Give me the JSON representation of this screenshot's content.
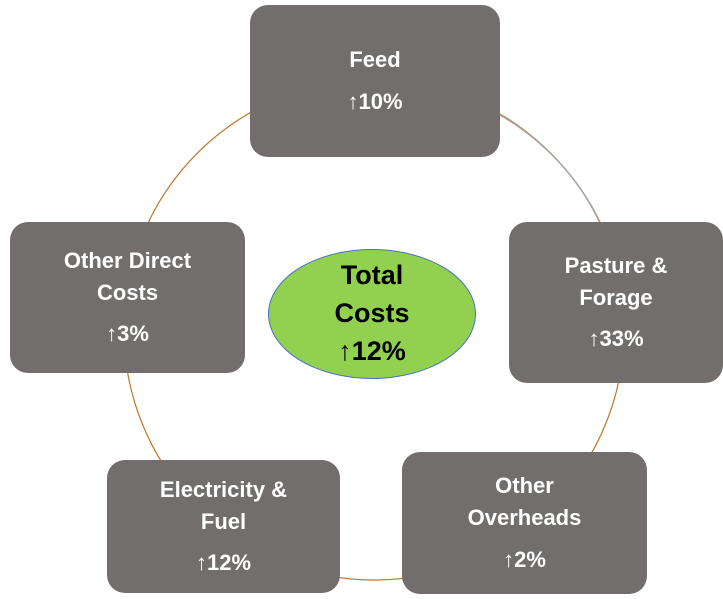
{
  "center": {
    "lines": [
      "Total",
      "Costs"
    ],
    "change": "↑12%"
  },
  "nodes": [
    {
      "lines": [
        "Feed"
      ],
      "change": "↑10%"
    },
    {
      "lines": [
        "Pasture &",
        "Forage"
      ],
      "change": "↑33%"
    },
    {
      "lines": [
        "Other",
        "Overheads"
      ],
      "change": "↑2%"
    },
    {
      "lines": [
        "Electricity &",
        "Fuel"
      ],
      "change": "↑12%"
    },
    {
      "lines": [
        "Other Direct",
        "Costs"
      ],
      "change": "↑3%"
    }
  ]
}
